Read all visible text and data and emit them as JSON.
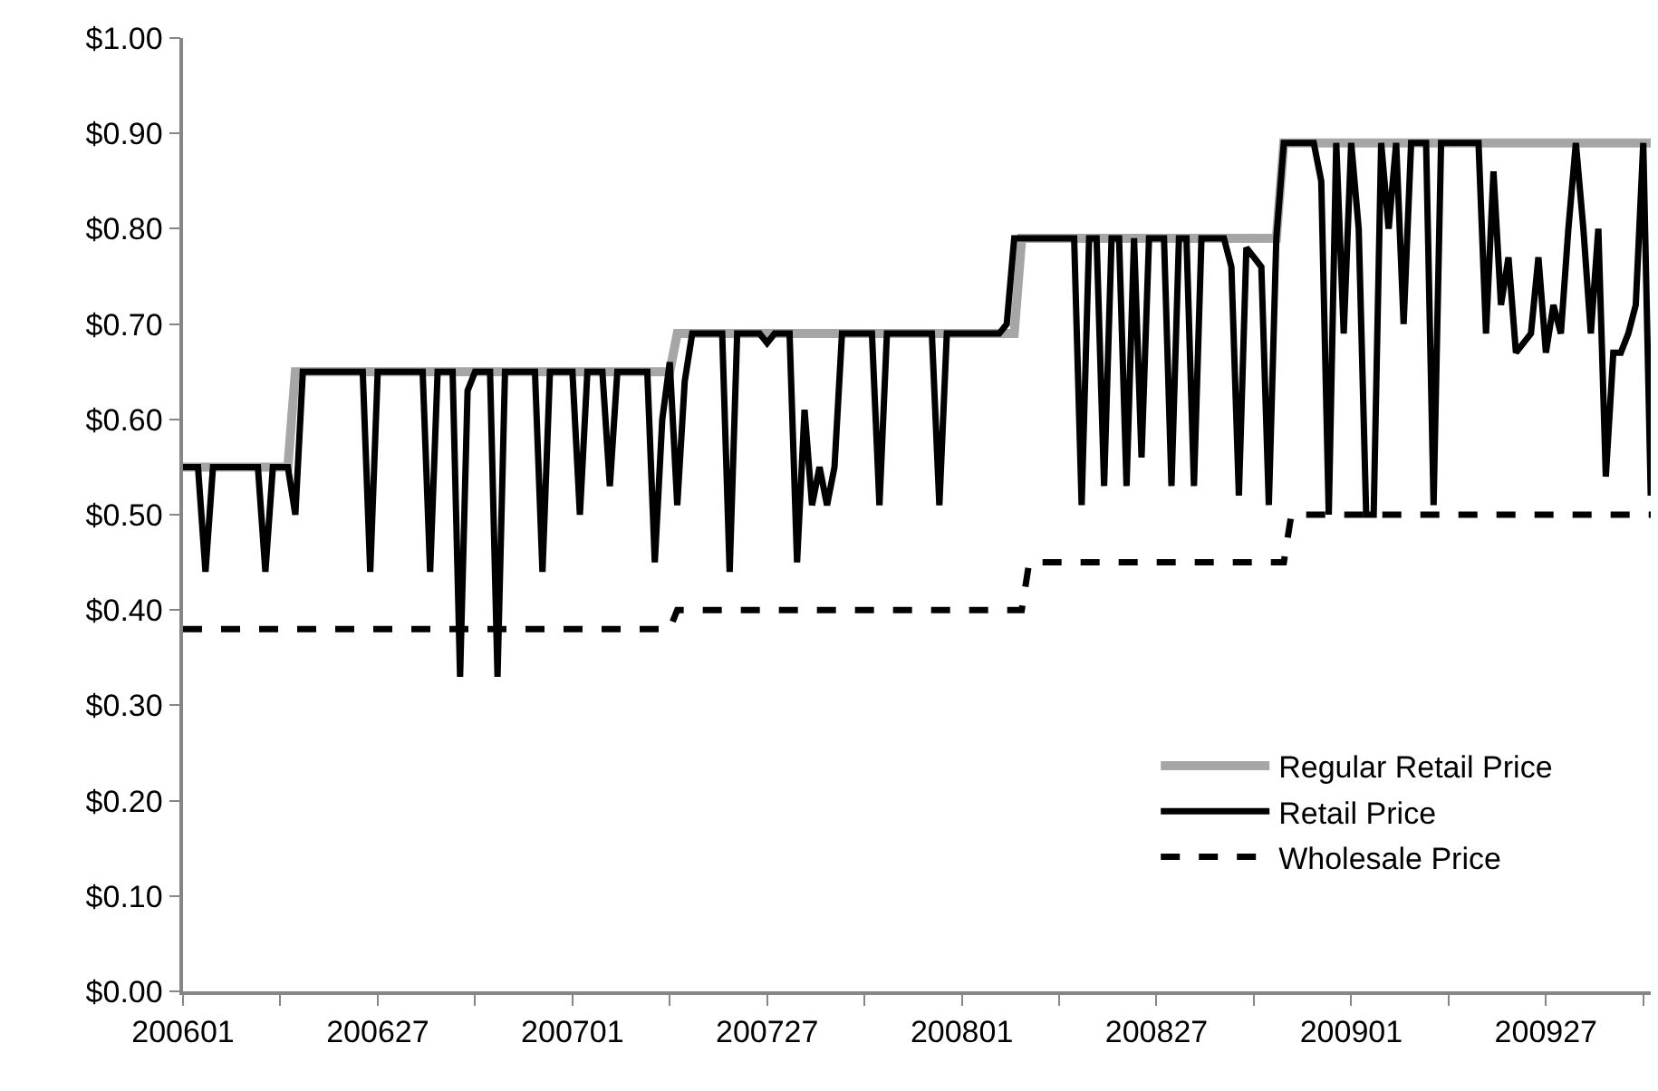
{
  "chart_data": {
    "type": "line",
    "categories": [
      "200601",
      null,
      null,
      null,
      null,
      null,
      null,
      null,
      null,
      null,
      null,
      null,
      null,
      null,
      null,
      null,
      null,
      null,
      null,
      null,
      null,
      null,
      null,
      null,
      null,
      null,
      "200627",
      null,
      null,
      null,
      null,
      null,
      null,
      null,
      null,
      null,
      null,
      null,
      null,
      null,
      null,
      null,
      null,
      null,
      null,
      null,
      null,
      null,
      null,
      null,
      null,
      null,
      "200701",
      null,
      null,
      null,
      null,
      null,
      null,
      null,
      null,
      null,
      null,
      null,
      null,
      null,
      null,
      null,
      null,
      null,
      null,
      null,
      null,
      null,
      null,
      null,
      null,
      null,
      "200727",
      null,
      null,
      null,
      null,
      null,
      null,
      null,
      null,
      null,
      null,
      null,
      null,
      null,
      null,
      null,
      null,
      null,
      null,
      null,
      null,
      null,
      null,
      null,
      null,
      null,
      "200801",
      null,
      null,
      null,
      null,
      null,
      null,
      null,
      null,
      null,
      null,
      null,
      null,
      null,
      null,
      null,
      null,
      null,
      null,
      null,
      null,
      null,
      null,
      null,
      null,
      null,
      "200827",
      null,
      null,
      null,
      null,
      null,
      null,
      null,
      null,
      null,
      null,
      null,
      null,
      null,
      null,
      null,
      null,
      null,
      null,
      null,
      null,
      null,
      null,
      null,
      null,
      null,
      "200901",
      null,
      null,
      null,
      null,
      null,
      null,
      null,
      null,
      null,
      null,
      null,
      null,
      null,
      null,
      null,
      null,
      null,
      null,
      null,
      null,
      null,
      null,
      null,
      null,
      null,
      "200927",
      null,
      null,
      null,
      null,
      null,
      null,
      null,
      null,
      null,
      null,
      null,
      null,
      null,
      null
    ],
    "series": [
      {
        "name": "Regular Retail Price",
        "color": "#a6a6a6",
        "line_style": "solid",
        "values": [
          0.55,
          0.55,
          0.55,
          0.55,
          0.55,
          0.55,
          0.55,
          0.55,
          0.55,
          0.55,
          0.55,
          0.55,
          0.55,
          0.55,
          0.55,
          0.65,
          0.65,
          0.65,
          0.65,
          0.65,
          0.65,
          0.65,
          0.65,
          0.65,
          0.65,
          0.65,
          0.65,
          0.65,
          0.65,
          0.65,
          0.65,
          0.65,
          0.65,
          0.65,
          0.65,
          0.65,
          0.65,
          0.65,
          0.65,
          0.65,
          0.65,
          0.65,
          0.65,
          0.65,
          0.65,
          0.65,
          0.65,
          0.65,
          0.65,
          0.65,
          0.65,
          0.65,
          0.65,
          0.65,
          0.65,
          0.65,
          0.65,
          0.65,
          0.65,
          0.65,
          0.65,
          0.65,
          0.65,
          0.65,
          0.65,
          0.65,
          0.69,
          0.69,
          0.69,
          0.69,
          0.69,
          0.69,
          0.69,
          0.69,
          0.69,
          0.69,
          0.69,
          0.69,
          0.69,
          0.69,
          0.69,
          0.69,
          0.69,
          0.69,
          0.69,
          0.69,
          0.69,
          0.69,
          0.69,
          0.69,
          0.69,
          0.69,
          0.69,
          0.69,
          0.69,
          0.69,
          0.69,
          0.69,
          0.69,
          0.69,
          0.69,
          0.69,
          0.69,
          0.69,
          0.69,
          0.69,
          0.69,
          0.69,
          0.69,
          0.69,
          0.69,
          0.69,
          0.79,
          0.79,
          0.79,
          0.79,
          0.79,
          0.79,
          0.79,
          0.79,
          0.79,
          0.79,
          0.79,
          0.79,
          0.79,
          0.79,
          0.79,
          0.79,
          0.79,
          0.79,
          0.79,
          0.79,
          0.79,
          0.79,
          0.79,
          0.79,
          0.79,
          0.79,
          0.79,
          0.79,
          0.79,
          0.79,
          0.79,
          0.79,
          0.79,
          0.79,
          0.79,
          0.89,
          0.89,
          0.89,
          0.89,
          0.89,
          0.89,
          0.89,
          0.89,
          0.89,
          0.89,
          0.89,
          0.89,
          0.89,
          0.89,
          0.89,
          0.89,
          0.89,
          0.89,
          0.89,
          0.89,
          0.89,
          0.89,
          0.89,
          0.89,
          0.89,
          0.89,
          0.89,
          0.89,
          0.89,
          0.89,
          0.89,
          0.89,
          0.89,
          0.89,
          0.89,
          0.89,
          0.89,
          0.89,
          0.89,
          0.89,
          0.89,
          0.89,
          0.89,
          0.89,
          0.89,
          0.89,
          0.89,
          0.89,
          0.89,
          0.89
        ]
      },
      {
        "name": "Retail Price",
        "color": "#000000",
        "line_style": "solid",
        "values": [
          0.55,
          0.55,
          0.55,
          0.44,
          0.55,
          0.55,
          0.55,
          0.55,
          0.55,
          0.55,
          0.55,
          0.44,
          0.55,
          0.55,
          0.55,
          0.5,
          0.65,
          0.65,
          0.65,
          0.65,
          0.65,
          0.65,
          0.65,
          0.65,
          0.65,
          0.44,
          0.65,
          0.65,
          0.65,
          0.65,
          0.65,
          0.65,
          0.65,
          0.44,
          0.65,
          0.65,
          0.65,
          0.33,
          0.63,
          0.65,
          0.65,
          0.65,
          0.33,
          0.65,
          0.65,
          0.65,
          0.65,
          0.65,
          0.44,
          0.65,
          0.65,
          0.65,
          0.65,
          0.5,
          0.65,
          0.65,
          0.65,
          0.53,
          0.65,
          0.65,
          0.65,
          0.65,
          0.65,
          0.45,
          0.6,
          0.66,
          0.51,
          0.64,
          0.69,
          0.69,
          0.69,
          0.69,
          0.69,
          0.44,
          0.69,
          0.69,
          0.69,
          0.69,
          0.68,
          0.69,
          0.69,
          0.69,
          0.45,
          0.61,
          0.51,
          0.55,
          0.51,
          0.55,
          0.69,
          0.69,
          0.69,
          0.69,
          0.69,
          0.51,
          0.69,
          0.69,
          0.69,
          0.69,
          0.69,
          0.69,
          0.69,
          0.51,
          0.69,
          0.69,
          0.69,
          0.69,
          0.69,
          0.69,
          0.69,
          0.69,
          0.7,
          0.79,
          0.79,
          0.79,
          0.79,
          0.79,
          0.79,
          0.79,
          0.79,
          0.79,
          0.51,
          0.79,
          0.79,
          0.53,
          0.79,
          0.79,
          0.53,
          0.79,
          0.56,
          0.79,
          0.79,
          0.79,
          0.53,
          0.79,
          0.79,
          0.53,
          0.79,
          0.79,
          0.79,
          0.79,
          0.76,
          0.52,
          0.78,
          0.77,
          0.76,
          0.51,
          0.79,
          0.89,
          0.89,
          0.89,
          0.89,
          0.89,
          0.85,
          0.5,
          0.89,
          0.69,
          0.89,
          0.8,
          0.5,
          0.5,
          0.89,
          0.8,
          0.89,
          0.7,
          0.89,
          0.89,
          0.89,
          0.51,
          0.89,
          0.89,
          0.89,
          0.89,
          0.89,
          0.89,
          0.69,
          0.86,
          0.72,
          0.77,
          0.67,
          0.68,
          0.69,
          0.77,
          0.67,
          0.72,
          0.69,
          0.8,
          0.89,
          0.8,
          0.69,
          0.8,
          0.54,
          0.67,
          0.67,
          0.69,
          0.72,
          0.89,
          0.52
        ]
      },
      {
        "name": "Wholesale Price",
        "color": "#000000",
        "line_style": "dashed",
        "values": [
          0.38,
          0.38,
          0.38,
          0.38,
          0.38,
          0.38,
          0.38,
          0.38,
          0.38,
          0.38,
          0.38,
          0.38,
          0.38,
          0.38,
          0.38,
          0.38,
          0.38,
          0.38,
          0.38,
          0.38,
          0.38,
          0.38,
          0.38,
          0.38,
          0.38,
          0.38,
          0.38,
          0.38,
          0.38,
          0.38,
          0.38,
          0.38,
          0.38,
          0.38,
          0.38,
          0.38,
          0.38,
          0.38,
          0.38,
          0.38,
          0.38,
          0.38,
          0.38,
          0.38,
          0.38,
          0.38,
          0.38,
          0.38,
          0.38,
          0.38,
          0.38,
          0.38,
          0.38,
          0.38,
          0.38,
          0.38,
          0.38,
          0.38,
          0.38,
          0.38,
          0.38,
          0.38,
          0.38,
          0.38,
          0.38,
          0.38,
          0.4,
          0.4,
          0.4,
          0.4,
          0.4,
          0.4,
          0.4,
          0.4,
          0.4,
          0.4,
          0.4,
          0.4,
          0.4,
          0.4,
          0.4,
          0.4,
          0.4,
          0.4,
          0.4,
          0.4,
          0.4,
          0.4,
          0.4,
          0.4,
          0.4,
          0.4,
          0.4,
          0.4,
          0.4,
          0.4,
          0.4,
          0.4,
          0.4,
          0.4,
          0.4,
          0.4,
          0.4,
          0.4,
          0.4,
          0.4,
          0.4,
          0.4,
          0.4,
          0.4,
          0.4,
          0.4,
          0.4,
          0.45,
          0.45,
          0.45,
          0.45,
          0.45,
          0.45,
          0.45,
          0.45,
          0.45,
          0.45,
          0.45,
          0.45,
          0.45,
          0.45,
          0.45,
          0.45,
          0.45,
          0.45,
          0.45,
          0.45,
          0.45,
          0.45,
          0.45,
          0.45,
          0.45,
          0.45,
          0.45,
          0.45,
          0.45,
          0.45,
          0.45,
          0.45,
          0.45,
          0.45,
          0.45,
          0.5,
          0.5,
          0.5,
          0.5,
          0.5,
          0.5,
          0.5,
          0.5,
          0.5,
          0.5,
          0.5,
          0.5,
          0.5,
          0.5,
          0.5,
          0.5,
          0.5,
          0.5,
          0.5,
          0.5,
          0.5,
          0.5,
          0.5,
          0.5,
          0.5,
          0.5,
          0.5,
          0.5,
          0.5,
          0.5,
          0.5,
          0.5,
          0.5,
          0.5,
          0.5,
          0.5,
          0.5,
          0.5,
          0.5,
          0.5,
          0.5,
          0.5,
          0.5,
          0.5,
          0.5,
          0.5,
          0.5,
          0.5,
          0.5
        ]
      }
    ],
    "ylim": [
      0,
      1
    ],
    "yticks": [
      {
        "value": 0,
        "label": "$0.00"
      },
      {
        "value": 0.1,
        "label": "$0.10"
      },
      {
        "value": 0.2,
        "label": "$0.20"
      },
      {
        "value": 0.3,
        "label": "$0.30"
      },
      {
        "value": 0.4,
        "label": "$0.40"
      },
      {
        "value": 0.5,
        "label": "$0.50"
      },
      {
        "value": 0.6,
        "label": "$0.60"
      },
      {
        "value": 0.7,
        "label": "$0.70"
      },
      {
        "value": 0.8,
        "label": "$0.80"
      },
      {
        "value": 0.9,
        "label": "$0.90"
      },
      {
        "value": 1,
        "label": "$1.00"
      }
    ],
    "legend": "bottom right",
    "marker": "none"
  }
}
